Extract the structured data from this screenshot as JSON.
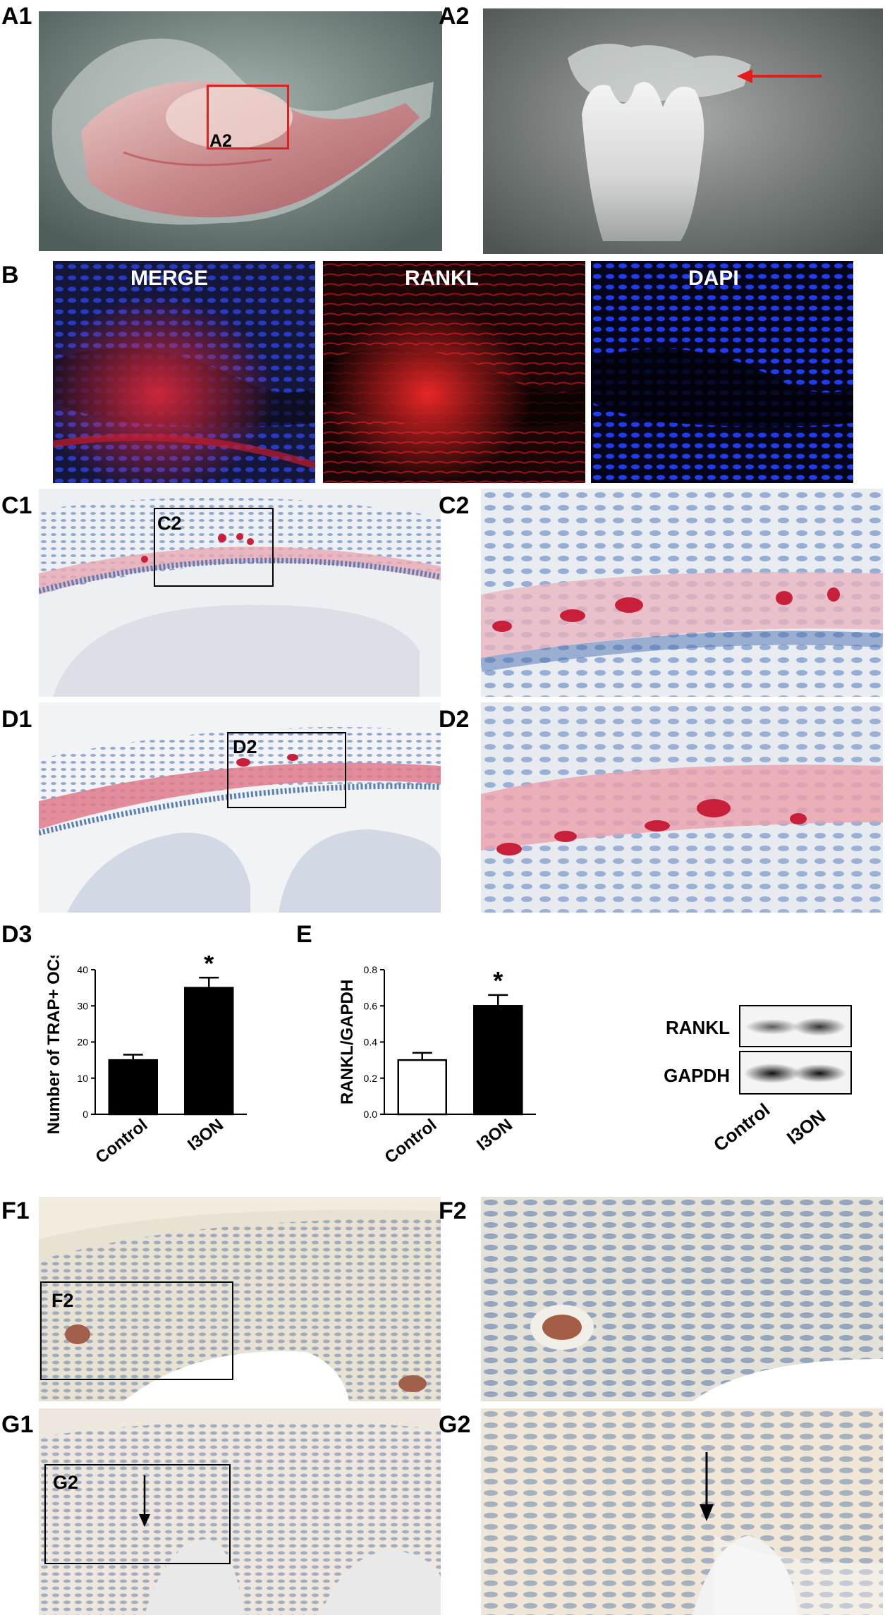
{
  "labels": {
    "A1": "A1",
    "A2": "A2",
    "B": "B",
    "C1": "C1",
    "C2": "C2",
    "D1": "D1",
    "D2": "D2",
    "D3": "D3",
    "E": "E",
    "F1": "F1",
    "F2": "F2",
    "G1": "G1",
    "G2": "G2"
  },
  "overlays": {
    "a1_box": "A2",
    "c1_box": "C2",
    "d1_box": "D2",
    "f1_box": "F2",
    "g1_box": "G2"
  },
  "fluorescence": {
    "merge": "MERGE",
    "rankl": "RANKL",
    "dapi": "DAPI"
  },
  "colors": {
    "tissue_bg": "#d9e2ec",
    "trap_red": "#c8203a",
    "hematoxylin_blue": "#5a7fb8",
    "merge_blue": "#2840c8",
    "rankl_red": "#d81818",
    "dapi_blue": "#1e3cf0",
    "box_red": "#e02020",
    "box_black": "#000000",
    "arrow_red": "#e51c1c"
  },
  "blot": {
    "rows": [
      "RANKL",
      "GAPDH"
    ],
    "lanes": [
      "Control",
      "I3ON"
    ]
  },
  "chart_data": [
    {
      "type": "bar",
      "panel": "D3",
      "categories": [
        "Control",
        "I3ON"
      ],
      "values": [
        15,
        35
      ],
      "errors": [
        1.5,
        2.8
      ],
      "fills": [
        "#000000",
        "#000000"
      ],
      "significance": [
        "",
        "*"
      ],
      "ylabel": "Number of TRAP+ OCs",
      "xlabel": "",
      "ylim": [
        0,
        40
      ],
      "yticks": [
        "0",
        "10",
        "20",
        "30",
        "40"
      ]
    },
    {
      "type": "bar",
      "panel": "E",
      "categories": [
        "Control",
        "I3ON"
      ],
      "values": [
        0.3,
        0.6
      ],
      "errors": [
        0.04,
        0.06
      ],
      "fills": [
        "#ffffff",
        "#000000"
      ],
      "significance": [
        "",
        "*"
      ],
      "ylabel": "RANKL/GAPDH",
      "xlabel": "",
      "ylim": [
        0,
        0.8
      ],
      "yticks": [
        "0.0",
        "0.2",
        "0.4",
        "0.6",
        "0.8"
      ]
    }
  ]
}
